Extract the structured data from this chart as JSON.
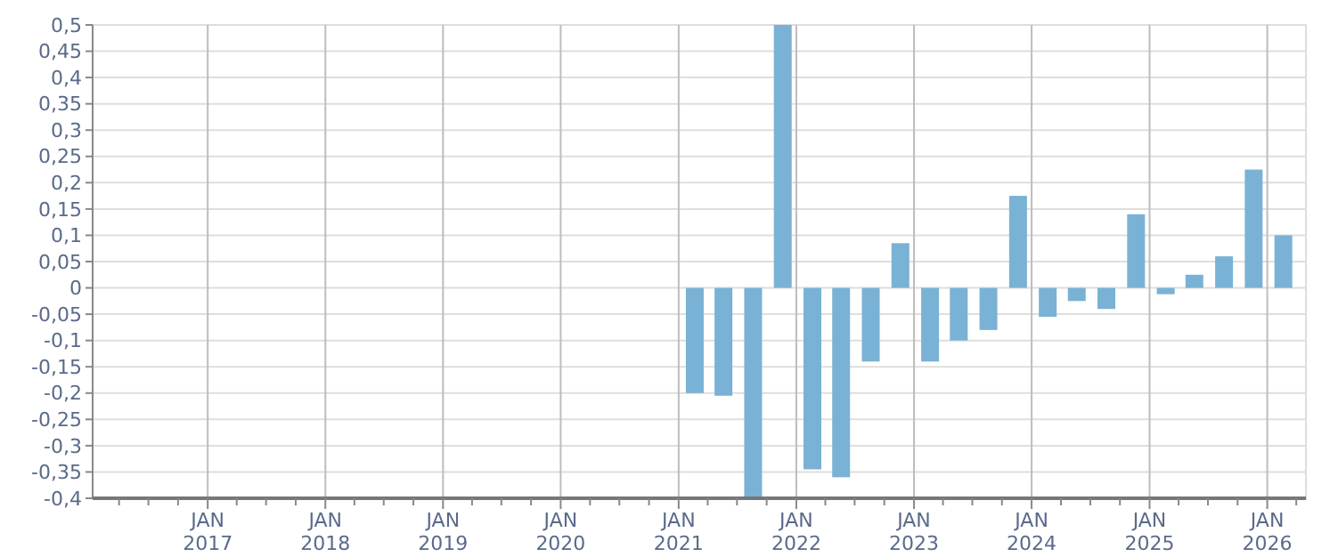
{
  "chart_data": {
    "type": "bar",
    "x": [
      "2021-02-20",
      "2021-05-20",
      "2021-08-20",
      "2021-11-20",
      "2022-02-20",
      "2022-05-20",
      "2022-08-20",
      "2022-11-20",
      "2023-02-20",
      "2023-05-20",
      "2023-08-20",
      "2023-11-20",
      "2024-02-20",
      "2024-05-20",
      "2024-08-20",
      "2024-11-20",
      "2025-02-20",
      "2025-05-20",
      "2025-08-20",
      "2025-11-20",
      "2026-02-20"
    ],
    "series": [
      {
        "color": "#79b2d4",
        "values": [
          -0.2,
          -0.205,
          -0.4,
          0.5,
          -0.345,
          -0.36,
          -0.14,
          0.085,
          -0.14,
          -0.1,
          -0.08,
          0.175,
          -0.055,
          -0.025,
          -0.04,
          0.14,
          -0.012,
          0.025,
          0.06,
          0.225,
          0.1
        ]
      }
    ],
    "xlim": [
      "2016-01-10",
      "2026-05-01"
    ],
    "xticks": [
      {
        "value": "2016-04-01",
        "label": null
      },
      {
        "value": "2016-07-01",
        "label": null
      },
      {
        "value": "2016-10-01",
        "label": null
      },
      {
        "value": "2017-01-01",
        "label": "JAN\n2017"
      },
      {
        "value": "2017-04-01",
        "label": null
      },
      {
        "value": "2017-07-01",
        "label": null
      },
      {
        "value": "2017-10-01",
        "label": null
      },
      {
        "value": "2018-01-01",
        "label": "JAN\n2018"
      },
      {
        "value": "2018-04-01",
        "label": null
      },
      {
        "value": "2018-07-01",
        "label": null
      },
      {
        "value": "2018-10-01",
        "label": null
      },
      {
        "value": "2019-01-01",
        "label": "JAN\n2019"
      },
      {
        "value": "2019-04-01",
        "label": null
      },
      {
        "value": "2019-07-01",
        "label": null
      },
      {
        "value": "2019-10-01",
        "label": null
      },
      {
        "value": "2020-01-01",
        "label": "JAN\n2020"
      },
      {
        "value": "2020-04-01",
        "label": null
      },
      {
        "value": "2020-07-01",
        "label": null
      },
      {
        "value": "2020-10-01",
        "label": null
      },
      {
        "value": "2021-01-01",
        "label": "JAN\n2021"
      },
      {
        "value": "2021-04-01",
        "label": null
      },
      {
        "value": "2021-07-01",
        "label": null
      },
      {
        "value": "2021-10-01",
        "label": null
      },
      {
        "value": "2022-01-01",
        "label": "JAN\n2022"
      },
      {
        "value": "2022-04-01",
        "label": null
      },
      {
        "value": "2022-07-01",
        "label": null
      },
      {
        "value": "2022-10-01",
        "label": null
      },
      {
        "value": "2023-01-01",
        "label": "JAN\n2023"
      },
      {
        "value": "2023-04-01",
        "label": null
      },
      {
        "value": "2023-07-01",
        "label": null
      },
      {
        "value": "2023-10-01",
        "label": null
      },
      {
        "value": "2024-01-01",
        "label": "JAN\n2024"
      },
      {
        "value": "2024-04-01",
        "label": null
      },
      {
        "value": "2024-07-01",
        "label": null
      },
      {
        "value": "2024-10-01",
        "label": null
      },
      {
        "value": "2025-01-01",
        "label": "JAN\n2025"
      },
      {
        "value": "2025-04-01",
        "label": null
      },
      {
        "value": "2025-07-01",
        "label": null
      },
      {
        "value": "2025-10-01",
        "label": null
      },
      {
        "value": "2026-01-01",
        "label": "JAN\n2026"
      },
      {
        "value": "2026-04-01",
        "label": null
      }
    ],
    "ylim": [
      -0.4,
      0.5
    ],
    "yticks": [
      {
        "value": 0.5,
        "label": "0,5"
      },
      {
        "value": 0.45,
        "label": "0,45"
      },
      {
        "value": 0.4,
        "label": "0,4"
      },
      {
        "value": 0.35,
        "label": "0,35"
      },
      {
        "value": 0.3,
        "label": "0,3"
      },
      {
        "value": 0.25,
        "label": "0,25"
      },
      {
        "value": 0.2,
        "label": "0,2"
      },
      {
        "value": 0.15,
        "label": "0,15"
      },
      {
        "value": 0.1,
        "label": "0,1"
      },
      {
        "value": 0.05,
        "label": "0,05"
      },
      {
        "value": 0,
        "label": "0"
      },
      {
        "value": -0.05,
        "label": "-0,05"
      },
      {
        "value": -0.1,
        "label": "-0,1"
      },
      {
        "value": -0.15,
        "label": "-0,15"
      },
      {
        "value": -0.2,
        "label": "-0,2"
      },
      {
        "value": -0.25,
        "label": "-0,25"
      },
      {
        "value": -0.3,
        "label": "-0,3"
      },
      {
        "value": -0.35,
        "label": "-0,35"
      },
      {
        "value": -0.4,
        "label": "-0,4"
      }
    ],
    "grid": true
  }
}
